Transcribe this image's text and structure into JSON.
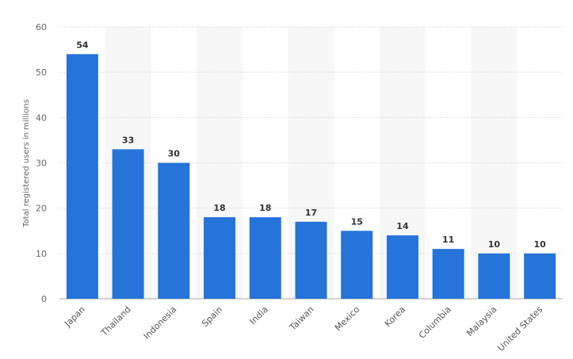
{
  "chart_data": {
    "type": "bar",
    "categories": [
      "Japan",
      "Thailand",
      "Indonesia",
      "Spain",
      "India",
      "Taiwan",
      "Mexico",
      "Korea",
      "Columbia",
      "Malaysia",
      "United States"
    ],
    "values": [
      54,
      33,
      30,
      18,
      18,
      17,
      15,
      14,
      11,
      10,
      10
    ],
    "title": "",
    "xlabel": "",
    "ylabel": "Total registered users in millions",
    "ylim": [
      0,
      60
    ],
    "yticks": [
      0,
      10,
      20,
      30,
      40,
      50,
      60
    ],
    "grid": true,
    "legend": "none",
    "bar_color": "#2673d9",
    "band_color": "#f7f7f7",
    "grid_color": "#cccccc"
  }
}
